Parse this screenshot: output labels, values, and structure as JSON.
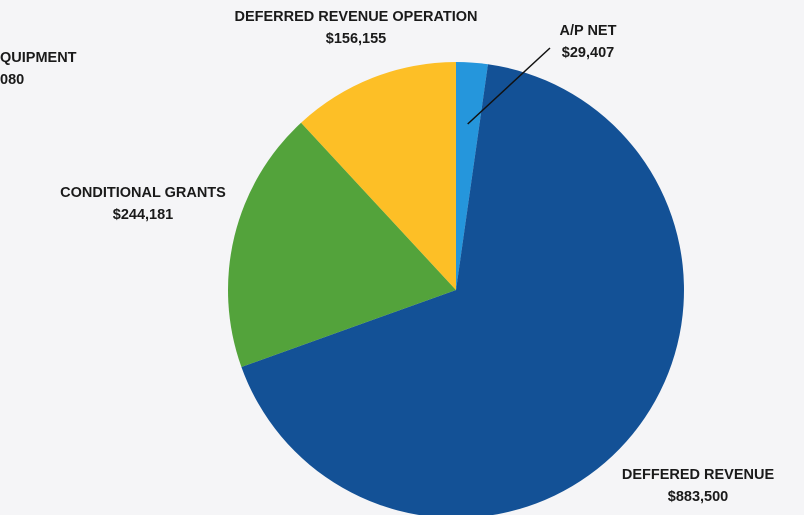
{
  "chart_data": {
    "type": "pie",
    "slices": [
      {
        "name": "A/P NET",
        "value": 29407,
        "value_label": "$29,407",
        "color": "#2596dc"
      },
      {
        "name": "DEFFERED REVENUE",
        "value": 883500,
        "value_label": "$883,500",
        "color": "#135196"
      },
      {
        "name": "CONDITIONAL GRANTS",
        "value": 244181,
        "value_label": "$244,181",
        "color": "#53a33b"
      },
      {
        "name": "DEFERRED REVENUE OPERATION",
        "value": 156155,
        "value_label": "$156,155",
        "color": "#fdbf26"
      }
    ],
    "partial_labels": [
      {
        "name": "QUIPMENT",
        "value_label": "080"
      }
    ],
    "start_angle_deg": 0,
    "direction": "clockwise"
  }
}
